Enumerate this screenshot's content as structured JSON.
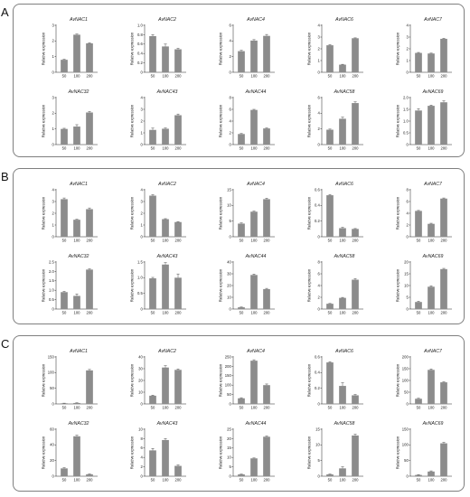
{
  "figure": {
    "panel_labels": [
      "A",
      "B",
      "C"
    ],
    "ylabel": "Relative expression",
    "categories": [
      "50",
      "100",
      "200"
    ],
    "bar_color": "#8c8c8c"
  },
  "chart_data": [
    {
      "panel": "A",
      "type": "bar",
      "title": "AvNAC1",
      "categories": [
        "50",
        "100",
        "200"
      ],
      "values": [
        0.8,
        2.4,
        1.85
      ],
      "errors": [
        0.03,
        0.04,
        0.03
      ],
      "ylim": [
        0,
        3
      ],
      "yticks": [
        "0",
        "1",
        "2",
        "3"
      ],
      "ylabel": "Relative expression"
    },
    {
      "panel": "A",
      "type": "bar",
      "title": "AvNAC2",
      "categories": [
        "50",
        "100",
        "200"
      ],
      "values": [
        0.77,
        0.55,
        0.49
      ],
      "errors": [
        0.03,
        0.05,
        0.02
      ],
      "ylim": [
        0,
        1.0
      ],
      "yticks": [
        "0",
        "0.2",
        "0.4",
        "0.6",
        "0.8",
        "1.0"
      ],
      "ylabel": "Relative expression"
    },
    {
      "panel": "A",
      "type": "bar",
      "title": "AvNAC4",
      "categories": [
        "50",
        "100",
        "200"
      ],
      "values": [
        2.7,
        4.05,
        4.65
      ],
      "errors": [
        0.1,
        0.12,
        0.18
      ],
      "ylim": [
        0,
        6
      ],
      "yticks": [
        "0",
        "2",
        "4",
        "6"
      ],
      "ylabel": "Relative expression"
    },
    {
      "panel": "A",
      "type": "bar",
      "title": "AvNAC6",
      "categories": [
        "50",
        "100",
        "200"
      ],
      "values": [
        2.3,
        0.65,
        2.9
      ],
      "errors": [
        0.05,
        0.03,
        0.03
      ],
      "ylim": [
        0,
        4
      ],
      "yticks": [
        "0",
        "1",
        "2",
        "3",
        "4"
      ],
      "ylabel": "Relative expression"
    },
    {
      "panel": "A",
      "type": "bar",
      "title": "AvNAC7",
      "categories": [
        "50",
        "100",
        "200"
      ],
      "values": [
        1.65,
        1.6,
        2.85
      ],
      "errors": [
        0.04,
        0.03,
        0.04
      ],
      "ylim": [
        0,
        4
      ],
      "yticks": [
        "0",
        "1",
        "2",
        "3",
        "4"
      ],
      "ylabel": "Relative expression"
    },
    {
      "panel": "A",
      "type": "bar",
      "title": "AvNAC32",
      "categories": [
        "50",
        "100",
        "200"
      ],
      "values": [
        1.0,
        1.15,
        2.05
      ],
      "errors": [
        0.04,
        0.12,
        0.06
      ],
      "ylim": [
        0,
        3
      ],
      "yticks": [
        "0",
        "1",
        "2",
        "3"
      ],
      "ylabel": "Relative expression"
    },
    {
      "panel": "A",
      "type": "bar",
      "title": "AvNAC43",
      "categories": [
        "50",
        "100",
        "200"
      ],
      "values": [
        1.25,
        1.35,
        2.5
      ],
      "errors": [
        0.15,
        0.06,
        0.1
      ],
      "ylim": [
        0,
        4
      ],
      "yticks": [
        "0",
        "1",
        "2",
        "3",
        "4"
      ],
      "ylabel": "Relative expression"
    },
    {
      "panel": "A",
      "type": "bar",
      "title": "AvNAC44",
      "categories": [
        "50",
        "100",
        "200"
      ],
      "values": [
        1.8,
        5.9,
        2.75
      ],
      "errors": [
        0.08,
        0.1,
        0.08
      ],
      "ylim": [
        0,
        8
      ],
      "yticks": [
        "0",
        "2",
        "4",
        "6",
        "8"
      ],
      "ylabel": "Relative expression"
    },
    {
      "panel": "A",
      "type": "bar",
      "title": "AvNAC58",
      "categories": [
        "50",
        "100",
        "200"
      ],
      "values": [
        1.9,
        3.3,
        5.3
      ],
      "errors": [
        0.08,
        0.2,
        0.15
      ],
      "ylim": [
        0,
        6
      ],
      "yticks": [
        "0",
        "2",
        "4",
        "6"
      ],
      "ylabel": "Relative expression"
    },
    {
      "panel": "A",
      "type": "bar",
      "title": "AvNAC69",
      "categories": [
        "50",
        "100",
        "200"
      ],
      "values": [
        1.45,
        1.65,
        1.8
      ],
      "errors": [
        0.08,
        0.03,
        0.06
      ],
      "ylim": [
        0,
        2.0
      ],
      "yticks": [
        "0",
        "0.5",
        "1.0",
        "1.5",
        "2.0"
      ],
      "ylabel": "Relative expression"
    },
    {
      "panel": "B",
      "type": "bar",
      "title": "AvNAC1",
      "categories": [
        "50",
        "100",
        "200"
      ],
      "values": [
        3.2,
        1.45,
        2.35
      ],
      "errors": [
        0.1,
        0.04,
        0.1
      ],
      "ylim": [
        0,
        4
      ],
      "yticks": [
        "0",
        "1",
        "2",
        "3",
        "4"
      ],
      "ylabel": "Relative expression"
    },
    {
      "panel": "B",
      "type": "bar",
      "title": "AvNAC2",
      "categories": [
        "50",
        "100",
        "200"
      ],
      "values": [
        3.5,
        1.5,
        1.25
      ],
      "errors": [
        0.08,
        0.04,
        0.04
      ],
      "ylim": [
        0,
        4
      ],
      "yticks": [
        "0",
        "1",
        "2",
        "3",
        "4"
      ],
      "ylabel": "Relative expression"
    },
    {
      "panel": "B",
      "type": "bar",
      "title": "AvNAC4",
      "categories": [
        "50",
        "100",
        "200"
      ],
      "values": [
        4.2,
        8.0,
        12.0
      ],
      "errors": [
        0.2,
        0.2,
        0.3
      ],
      "ylim": [
        0,
        15
      ],
      "yticks": [
        "0",
        "5",
        "10",
        "15"
      ],
      "ylabel": "Relative expression"
    },
    {
      "panel": "B",
      "type": "bar",
      "title": "AvNAC6",
      "categories": [
        "50",
        "100",
        "200"
      ],
      "values": [
        0.53,
        0.11,
        0.1
      ],
      "errors": [
        0.01,
        0.01,
        0.005
      ],
      "ylim": [
        0,
        0.6
      ],
      "yticks": [
        "0",
        "0.2",
        "0.4",
        "0.6"
      ],
      "ylabel": "Relative expression"
    },
    {
      "panel": "B",
      "type": "bar",
      "title": "AvNAC7",
      "categories": [
        "50",
        "100",
        "200"
      ],
      "values": [
        4.4,
        2.2,
        6.5
      ],
      "errors": [
        0.08,
        0.1,
        0.1
      ],
      "ylim": [
        0,
        8
      ],
      "yticks": [
        "0",
        "2",
        "4",
        "6",
        "8"
      ],
      "ylabel": "Relative expression"
    },
    {
      "panel": "B",
      "type": "bar",
      "title": "AvNAC32",
      "categories": [
        "50",
        "100",
        "200"
      ],
      "values": [
        0.9,
        0.7,
        2.1
      ],
      "errors": [
        0.04,
        0.1,
        0.04
      ],
      "ylim": [
        0,
        2.5
      ],
      "yticks": [
        "0",
        "0.5",
        "1.0",
        "1.5",
        "2.0",
        "2.5"
      ],
      "ylabel": "Relative expression"
    },
    {
      "panel": "B",
      "type": "bar",
      "title": "AvNAC43",
      "categories": [
        "50",
        "100",
        "200"
      ],
      "values": [
        0.98,
        1.42,
        1.0
      ],
      "errors": [
        0.03,
        0.06,
        0.12
      ],
      "ylim": [
        0,
        1.5
      ],
      "yticks": [
        "0",
        "0.5",
        "1.0",
        "1.5"
      ],
      "ylabel": "Relative expression"
    },
    {
      "panel": "B",
      "type": "bar",
      "title": "AvNAC44",
      "categories": [
        "50",
        "100",
        "200"
      ],
      "values": [
        1.5,
        29,
        17
      ],
      "errors": [
        0.2,
        0.8,
        0.6
      ],
      "ylim": [
        0,
        40
      ],
      "yticks": [
        "0",
        "10",
        "20",
        "30",
        "40"
      ],
      "ylabel": "Relative expression"
    },
    {
      "panel": "B",
      "type": "bar",
      "title": "AvNAC58",
      "categories": [
        "50",
        "100",
        "200"
      ],
      "values": [
        0.9,
        1.9,
        5.0
      ],
      "errors": [
        0.05,
        0.08,
        0.2
      ],
      "ylim": [
        0,
        8
      ],
      "yticks": [
        "0",
        "2",
        "4",
        "6",
        "8"
      ],
      "ylabel": "Relative expression"
    },
    {
      "panel": "B",
      "type": "bar",
      "title": "AvNAC69",
      "categories": [
        "50",
        "100",
        "200"
      ],
      "values": [
        3.0,
        9.5,
        17.0
      ],
      "errors": [
        0.3,
        0.4,
        0.3
      ],
      "ylim": [
        0,
        20
      ],
      "yticks": [
        "0",
        "5",
        "10",
        "15",
        "20"
      ],
      "ylabel": "Relative expression"
    },
    {
      "panel": "C",
      "type": "bar",
      "title": "AvNAC1",
      "categories": [
        "50",
        "100",
        "200"
      ],
      "values": [
        2,
        3,
        107
      ],
      "errors": [
        0.5,
        0.5,
        3
      ],
      "ylim": [
        0,
        150
      ],
      "yticks": [
        "0",
        "50",
        "100",
        "150"
      ],
      "ylabel": "Relative expression"
    },
    {
      "panel": "C",
      "type": "bar",
      "title": "AvNAC2",
      "categories": [
        "50",
        "100",
        "200"
      ],
      "values": [
        7,
        31,
        29
      ],
      "errors": [
        0.5,
        1.5,
        0.8
      ],
      "ylim": [
        0,
        40
      ],
      "yticks": [
        "0",
        "10",
        "20",
        "30",
        "40"
      ],
      "ylabel": "Relative expression"
    },
    {
      "panel": "C",
      "type": "bar",
      "title": "AvNAC4",
      "categories": [
        "50",
        "100",
        "200"
      ],
      "values": [
        30,
        230,
        100
      ],
      "errors": [
        3,
        5,
        6
      ],
      "ylim": [
        0,
        250
      ],
      "yticks": [
        "0",
        "50",
        "100",
        "150",
        "200",
        "250"
      ],
      "ylabel": "Relative expression"
    },
    {
      "panel": "C",
      "type": "bar",
      "title": "AvNAC6",
      "categories": [
        "50",
        "100",
        "200"
      ],
      "values": [
        0.53,
        0.23,
        0.11
      ],
      "errors": [
        0.01,
        0.04,
        0.01
      ],
      "ylim": [
        0,
        0.6
      ],
      "yticks": [
        "0",
        "0.2",
        "0.4",
        "0.6"
      ],
      "ylabel": "Relative expression"
    },
    {
      "panel": "C",
      "type": "bar",
      "title": "AvNAC7",
      "categories": [
        "50",
        "100",
        "200"
      ],
      "values": [
        22,
        145,
        92
      ],
      "errors": [
        2,
        4,
        2
      ],
      "ylim": [
        0,
        200
      ],
      "yticks": [
        "0",
        "50",
        "100",
        "150",
        "200"
      ],
      "ylabel": "Relative expression"
    },
    {
      "panel": "C",
      "type": "bar",
      "title": "AvNAC32",
      "categories": [
        "50",
        "100",
        "200"
      ],
      "values": [
        10,
        51,
        2.5
      ],
      "errors": [
        0.8,
        1.2,
        0.4
      ],
      "ylim": [
        0,
        60
      ],
      "yticks": [
        "0",
        "20",
        "40",
        "60"
      ],
      "ylabel": "Relative expression"
    },
    {
      "panel": "C",
      "type": "bar",
      "title": "AvNAC43",
      "categories": [
        "50",
        "100",
        "200"
      ],
      "values": [
        5.5,
        7.7,
        2.2
      ],
      "errors": [
        0.4,
        0.3,
        0.2
      ],
      "ylim": [
        0,
        10
      ],
      "yticks": [
        "0",
        "2",
        "4",
        "6",
        "8",
        "10"
      ],
      "ylabel": "Relative expression"
    },
    {
      "panel": "C",
      "type": "bar",
      "title": "AvNAC44",
      "categories": [
        "50",
        "100",
        "200"
      ],
      "values": [
        1.0,
        9.5,
        21
      ],
      "errors": [
        0.1,
        0.2,
        0.4
      ],
      "ylim": [
        0,
        25
      ],
      "yticks": [
        "0",
        "5",
        "10",
        "15",
        "20",
        "25"
      ],
      "ylabel": "Relative expression"
    },
    {
      "panel": "C",
      "type": "bar",
      "title": "AvNAC58",
      "categories": [
        "50",
        "100",
        "200"
      ],
      "values": [
        0.6,
        2.5,
        13
      ],
      "errors": [
        0.1,
        0.5,
        0.4
      ],
      "ylim": [
        0,
        15
      ],
      "yticks": [
        "0",
        "5",
        "10",
        "15"
      ],
      "ylabel": "Relative expression"
    },
    {
      "panel": "C",
      "type": "bar",
      "title": "AvNAC69",
      "categories": [
        "50",
        "100",
        "200"
      ],
      "values": [
        4,
        15,
        105
      ],
      "errors": [
        1,
        2,
        3
      ],
      "ylim": [
        0,
        150
      ],
      "yticks": [
        "0",
        "50",
        "100",
        "150"
      ],
      "ylabel": "Relative expression"
    }
  ]
}
